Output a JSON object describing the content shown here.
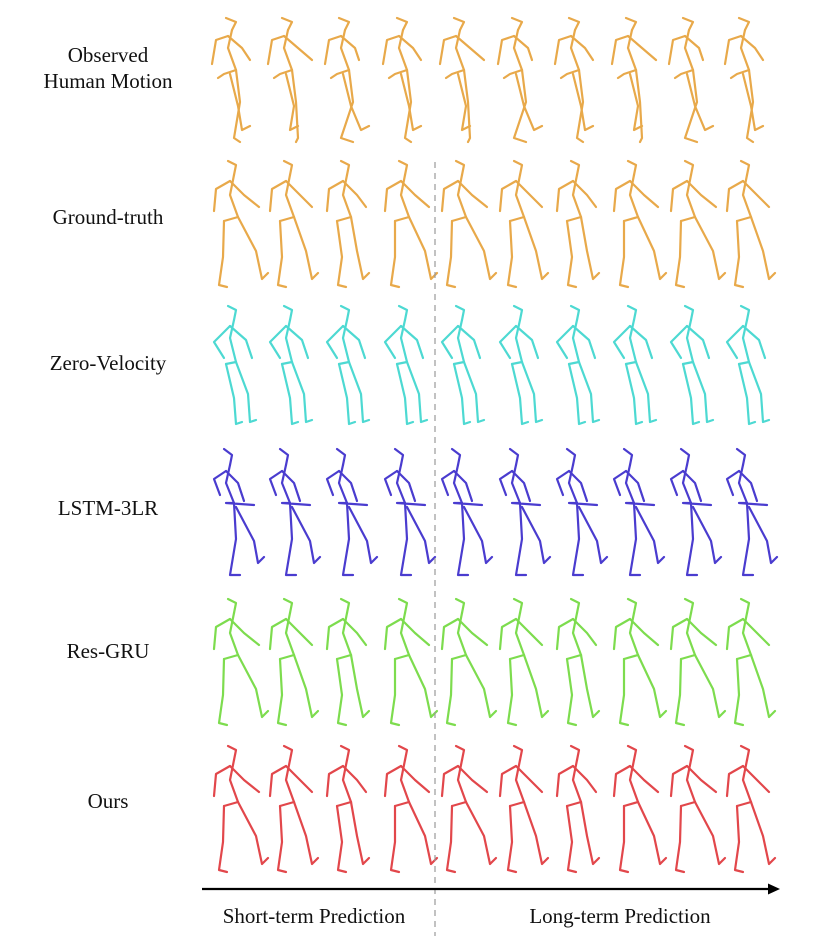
{
  "rows": [
    {
      "label_lines": [
        "Observed",
        "Human Motion"
      ],
      "color": "#E8A94A",
      "pose": "observed"
    },
    {
      "label_lines": [
        "Ground-truth"
      ],
      "color": "#E8A94A",
      "pose": "walk"
    },
    {
      "label_lines": [
        "Zero-Velocity"
      ],
      "color": "#4DD9D2",
      "pose": "still"
    },
    {
      "label_lines": [
        "LSTM-3LR"
      ],
      "color": "#4A3CCF",
      "pose": "lstm"
    },
    {
      "label_lines": [
        "Res-GRU"
      ],
      "color": "#7DDC4E",
      "pose": "walk"
    },
    {
      "label_lines": [
        "Ours"
      ],
      "color": "#E2474B",
      "pose": "walk"
    }
  ],
  "frames_per_row": 10,
  "axis": {
    "short_term_label": "Short-term Prediction",
    "long_term_label": "Long-term Prediction",
    "divider_color": "#999999",
    "arrow_color": "#000000"
  }
}
